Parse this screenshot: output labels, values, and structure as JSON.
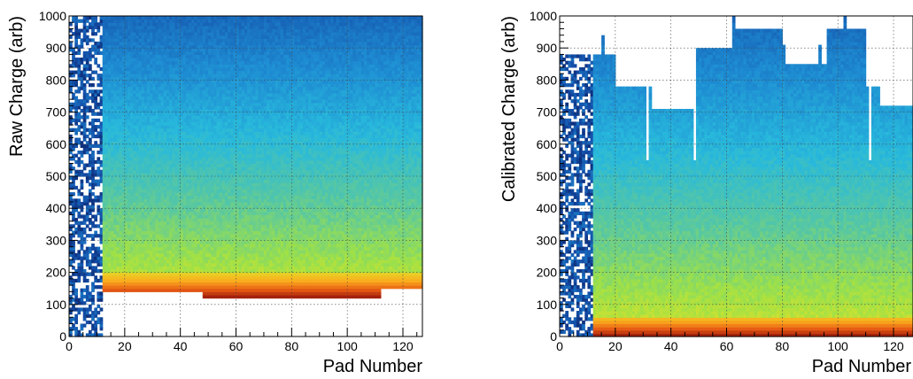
{
  "chart_data": [
    {
      "type": "heatmap",
      "xlabel": "Pad Number",
      "ylabel": "Raw Charge (arb)",
      "xlim": [
        0,
        127
      ],
      "ylim": [
        0,
        1000
      ],
      "x_ticks": [
        "0",
        "20",
        "40",
        "60",
        "80",
        "100",
        "120"
      ],
      "y_ticks": [
        "0",
        "100",
        "200",
        "300",
        "400",
        "500",
        "600",
        "700",
        "800",
        "900",
        "1000"
      ],
      "grid": true,
      "colormap": "rainbow (dark blue low -> cyan -> green -> yellow -> orange -> dark red high)",
      "sparse_pad_range": [
        0,
        12
      ],
      "pad_segments": [
        {
          "x_start": 12,
          "x_end": 48,
          "min_charge": 140,
          "peak_band": [
            140,
            200
          ],
          "upper_edge": 1000
        },
        {
          "x_start": 48,
          "x_end": 112,
          "min_charge": 120,
          "peak_band": [
            120,
            200
          ],
          "upper_edge": 1000
        },
        {
          "x_start": 112,
          "x_end": 127,
          "min_charge": 155,
          "peak_band": [
            155,
            200
          ],
          "upper_edge": 1000
        }
      ]
    },
    {
      "type": "heatmap",
      "xlabel": "Pad Number",
      "ylabel": "Calibrated Charge (arb)",
      "xlim": [
        0,
        127
      ],
      "ylim": [
        0,
        1000
      ],
      "x_ticks": [
        "0",
        "20",
        "40",
        "60",
        "80",
        "100",
        "120"
      ],
      "y_ticks": [
        "0",
        "100",
        "200",
        "300",
        "400",
        "500",
        "600",
        "700",
        "800",
        "900",
        "1000"
      ],
      "grid": true,
      "colormap": "rainbow (dark blue low -> cyan -> green -> yellow -> orange -> dark red high)",
      "sparse_pad_range": [
        0,
        12
      ],
      "pad_segments": [
        {
          "x_start": 12,
          "x_end": 20,
          "upper_edge": 880
        },
        {
          "x_start": 20,
          "x_end": 33,
          "upper_edge": 780
        },
        {
          "x_start": 33,
          "x_end": 48,
          "upper_edge": 710
        },
        {
          "x_start": 48,
          "x_end": 62,
          "upper_edge": 900
        },
        {
          "x_start": 62,
          "x_end": 80,
          "upper_edge": 960
        },
        {
          "x_start": 80,
          "x_end": 96,
          "upper_edge": 850
        },
        {
          "x_start": 96,
          "x_end": 110,
          "upper_edge": 960
        },
        {
          "x_start": 110,
          "x_end": 115,
          "upper_edge": 780
        },
        {
          "x_start": 115,
          "x_end": 127,
          "upper_edge": 720
        }
      ],
      "gap_pads": [
        31,
        48,
        111
      ],
      "spike_pads": [
        15,
        31,
        62,
        80,
        93,
        102
      ]
    }
  ]
}
